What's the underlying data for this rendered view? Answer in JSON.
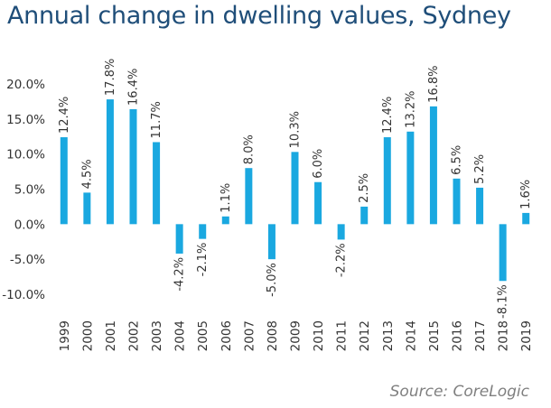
{
  "header": {
    "title": "Annual change in dwelling values, Sydney"
  },
  "footer": {
    "source": "Source: CoreLogic"
  },
  "colors": {
    "bar": "#1aa8e0",
    "title": "#1f4e79"
  },
  "chart_data": {
    "type": "bar",
    "title": "Annual change in dwelling values, Sydney",
    "categories": [
      "1999",
      "2000",
      "2001",
      "2002",
      "2003",
      "2004",
      "2005",
      "2006",
      "2007",
      "2008",
      "2009",
      "2010",
      "2011",
      "2012",
      "2013",
      "2014",
      "2015",
      "2016",
      "2017",
      "2018",
      "2019"
    ],
    "values": [
      12.4,
      4.5,
      17.8,
      16.4,
      11.7,
      -4.2,
      -2.1,
      1.1,
      8.0,
      -5.0,
      10.3,
      6.0,
      -2.2,
      2.5,
      12.4,
      13.2,
      16.8,
      6.5,
      5.2,
      -8.1,
      1.6
    ],
    "data_labels": [
      "12.4%",
      "4.5%",
      "17.8%",
      "16.4%",
      "11.7%",
      "-4.2%",
      "-2.1%",
      "1.1%",
      "8.0%",
      "-5.0%",
      "10.3%",
      "6.0%",
      "-2.2%",
      "2.5%",
      "12.4%",
      "13.2%",
      "16.8%",
      "6.5%",
      "5.2%",
      "-8.1%",
      "1.6%"
    ],
    "y_ticks": [
      20,
      15,
      10,
      5,
      0,
      -5,
      -10
    ],
    "y_tick_labels": [
      "20.0%",
      "15.0%",
      "10.0%",
      "5.0%",
      "0.0%",
      "-5.0%",
      "-10.0%"
    ],
    "ylim": [
      -10,
      20
    ],
    "xlabel": "",
    "ylabel": "",
    "grid": false,
    "legend": "none",
    "source": "Source: CoreLogic"
  }
}
